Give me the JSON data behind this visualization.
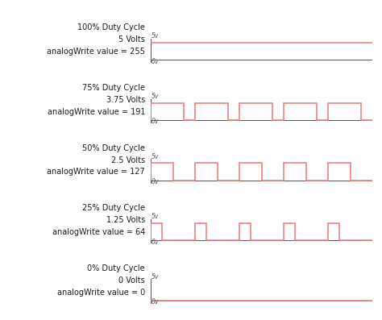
{
  "background_color": "#ffffff",
  "signal_color": "#f08080",
  "axis_color": "#555555",
  "text_color": "#1a1a1a",
  "panels": [
    {
      "label_line1": "100% Duty Cycle",
      "label_line2": "5 Volts",
      "label_line3": "analogWrite value = 255",
      "duty_cycle": 1.0
    },
    {
      "label_line1": "75% Duty Cycle",
      "label_line2": "3.75 Volts",
      "label_line3": "analogWrite value = 191",
      "duty_cycle": 0.75
    },
    {
      "label_line1": "50% Duty Cycle",
      "label_line2": "2.5 Volts",
      "label_line3": "analogWrite value = 127",
      "duty_cycle": 0.5
    },
    {
      "label_line1": "25% Duty Cycle",
      "label_line2": "1.25 Volts",
      "label_line3": "analogWrite value = 64",
      "duty_cycle": 0.25
    },
    {
      "label_line1": "0% Duty Cycle",
      "label_line2": "0 Volts",
      "label_line3": "analogWrite value = 0",
      "duty_cycle": 0.0
    }
  ],
  "num_cycles": 5,
  "total_time": 10.0,
  "ylabel_5v": "5v",
  "ylabel_0v": "0v",
  "label_fontsize": 7.0,
  "tick_fontsize": 5.5,
  "signal_linewidth": 1.2
}
